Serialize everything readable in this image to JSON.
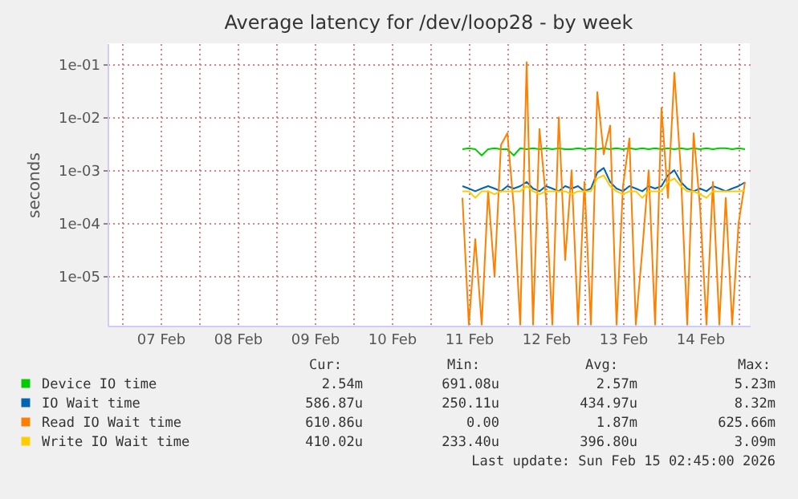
{
  "chart_data": {
    "type": "line",
    "title": "Average latency for /dev/loop28 - by week",
    "ylabel": "seconds",
    "log": "y",
    "grid": true,
    "legend": "bottom",
    "marker": "none",
    "line_style": "solid",
    "xlim": [
      "2026-02-06T19:30",
      "2026-02-15T03:30"
    ],
    "xticks": [
      {
        "value": "2026-02-07T00:00",
        "label": null
      },
      {
        "value": "2026-02-07T12:00",
        "label": "07 Feb"
      },
      {
        "value": "2026-02-08T00:00",
        "label": null
      },
      {
        "value": "2026-02-08T12:00",
        "label": "08 Feb"
      },
      {
        "value": "2026-02-09T00:00",
        "label": null
      },
      {
        "value": "2026-02-09T12:00",
        "label": "09 Feb"
      },
      {
        "value": "2026-02-10T00:00",
        "label": null
      },
      {
        "value": "2026-02-10T12:00",
        "label": "10 Feb"
      },
      {
        "value": "2026-02-11T00:00",
        "label": null
      },
      {
        "value": "2026-02-11T12:00",
        "label": "11 Feb"
      },
      {
        "value": "2026-02-12T00:00",
        "label": null
      },
      {
        "value": "2026-02-12T12:00",
        "label": "12 Feb"
      },
      {
        "value": "2026-02-13T00:00",
        "label": null
      },
      {
        "value": "2026-02-13T12:00",
        "label": "13 Feb"
      },
      {
        "value": "2026-02-14T00:00",
        "label": null
      },
      {
        "value": "2026-02-14T12:00",
        "label": "14 Feb"
      },
      {
        "value": "2026-02-15T00:00",
        "label": null
      }
    ],
    "ylim": [
      1.15e-06,
      0.25
    ],
    "yticks": [
      {
        "value": 1e-05,
        "label": "1e-05"
      },
      {
        "value": 0.0001,
        "label": "1e-04"
      },
      {
        "value": 0.001,
        "label": "1e-03"
      },
      {
        "value": 0.01,
        "label": "1e-02"
      },
      {
        "value": 0.1,
        "label": "1e-01"
      }
    ],
    "x": [
      "2026-02-11T10:00",
      "2026-02-11T12:00",
      "2026-02-11T14:00",
      "2026-02-11T16:00",
      "2026-02-11T18:00",
      "2026-02-11T20:00",
      "2026-02-11T22:00",
      "2026-02-12T00:00",
      "2026-02-12T02:00",
      "2026-02-12T04:00",
      "2026-02-12T06:00",
      "2026-02-12T08:00",
      "2026-02-12T10:00",
      "2026-02-12T12:00",
      "2026-02-12T14:00",
      "2026-02-12T16:00",
      "2026-02-12T18:00",
      "2026-02-12T20:00",
      "2026-02-12T22:00",
      "2026-02-13T00:00",
      "2026-02-13T02:00",
      "2026-02-13T04:00",
      "2026-02-13T06:00",
      "2026-02-13T08:00",
      "2026-02-13T10:00",
      "2026-02-13T12:00",
      "2026-02-13T14:00",
      "2026-02-13T16:00",
      "2026-02-13T18:00",
      "2026-02-13T20:00",
      "2026-02-13T22:00",
      "2026-02-14T00:00",
      "2026-02-14T02:00",
      "2026-02-14T04:00",
      "2026-02-14T06:00",
      "2026-02-14T08:00",
      "2026-02-14T10:00",
      "2026-02-14T12:00",
      "2026-02-14T14:00",
      "2026-02-14T16:00",
      "2026-02-14T18:00",
      "2026-02-14T20:00",
      "2026-02-14T22:00",
      "2026-02-15T00:00",
      "2026-02-15T02:00"
    ],
    "series": [
      {
        "name": "Device IO time",
        "color": "#00cc00",
        "values": [
          0.0025,
          0.0026,
          0.0025,
          0.0019,
          0.0025,
          0.0026,
          0.0025,
          0.0025,
          0.0019,
          0.0026,
          0.0025,
          0.0026,
          0.0025,
          0.0026,
          0.0025,
          0.0026,
          0.0025,
          0.0025,
          0.0026,
          0.0025,
          0.0026,
          0.0025,
          0.0026,
          0.0025,
          0.0026,
          0.0025,
          0.0026,
          0.0025,
          0.0026,
          0.0025,
          0.0026,
          0.0025,
          0.0026,
          0.0025,
          0.0026,
          0.0025,
          0.0026,
          0.0025,
          0.0026,
          0.0025,
          0.0026,
          0.0026,
          0.0025,
          0.0026,
          0.0025
        ]
      },
      {
        "name": "IO Wait time",
        "color": "#0066b3",
        "values": [
          0.0005,
          0.00045,
          0.0004,
          0.00045,
          0.0005,
          0.00045,
          0.0004,
          0.0005,
          0.00045,
          0.0005,
          0.0006,
          0.00045,
          0.0004,
          0.0005,
          0.00045,
          0.0004,
          0.0005,
          0.00045,
          0.0005,
          0.0004,
          0.00045,
          0.0009,
          0.0011,
          0.0006,
          0.00045,
          0.0004,
          0.0005,
          0.00045,
          0.0004,
          0.0005,
          0.00045,
          0.0005,
          0.0008,
          0.001,
          0.0006,
          0.00045,
          0.0004,
          0.00045,
          0.0004,
          0.0005,
          0.00045,
          0.0004,
          0.00045,
          0.0005,
          0.00059
        ]
      },
      {
        "name": "Read IO Wait time",
        "color": "#ff8000",
        "values": [
          0.0003,
          1.2e-06,
          5e-05,
          1.2e-06,
          0.0004,
          1e-05,
          0.003,
          0.005,
          0.0002,
          1.2e-06,
          0.11,
          1.2e-06,
          0.006,
          0.0003,
          1.2e-06,
          0.01,
          2e-05,
          0.001,
          1.2e-06,
          0.0006,
          1.2e-06,
          0.03,
          0.002,
          0.007,
          1.2e-06,
          0.0005,
          0.004,
          1.2e-06,
          3e-05,
          0.001,
          1.2e-06,
          0.015,
          0.0003,
          0.07,
          0.001,
          1.2e-06,
          0.005,
          0.0002,
          1.2e-06,
          0.0006,
          1.2e-06,
          0.0003,
          1.2e-06,
          0.0001,
          0.0006
        ]
      },
      {
        "name": "Write IO Wait time",
        "color": "#ffcc00",
        "values": [
          0.0004,
          0.0004,
          0.0003,
          0.0004,
          0.0004,
          0.00035,
          0.0004,
          0.0004,
          0.0004,
          0.0004,
          0.0005,
          0.0004,
          0.00035,
          0.0004,
          0.0004,
          0.0004,
          0.0004,
          0.00035,
          0.0004,
          0.0004,
          0.0004,
          0.0007,
          0.0008,
          0.0005,
          0.0004,
          0.00035,
          0.0004,
          0.0004,
          0.0003,
          0.0004,
          0.0004,
          0.0004,
          0.0006,
          0.0007,
          0.0005,
          0.0004,
          0.0004,
          0.00035,
          0.0003,
          0.0004,
          0.0004,
          0.0004,
          0.0004,
          0.0004,
          0.00041
        ]
      }
    ],
    "annotations": [
      "Cur:",
      "Min:",
      "Avg:",
      "Max:",
      "2.54m",
      "691.08u",
      "2.57m",
      "5.23m",
      "586.87u",
      "250.11u",
      "434.97u",
      "8.32m",
      "610.86u",
      "0.00",
      "1.87m",
      "625.66m",
      "410.02u",
      "233.40u",
      "396.80u",
      "3.09m",
      "Last update: Sun Feb 15 02:45:00 2026"
    ]
  }
}
